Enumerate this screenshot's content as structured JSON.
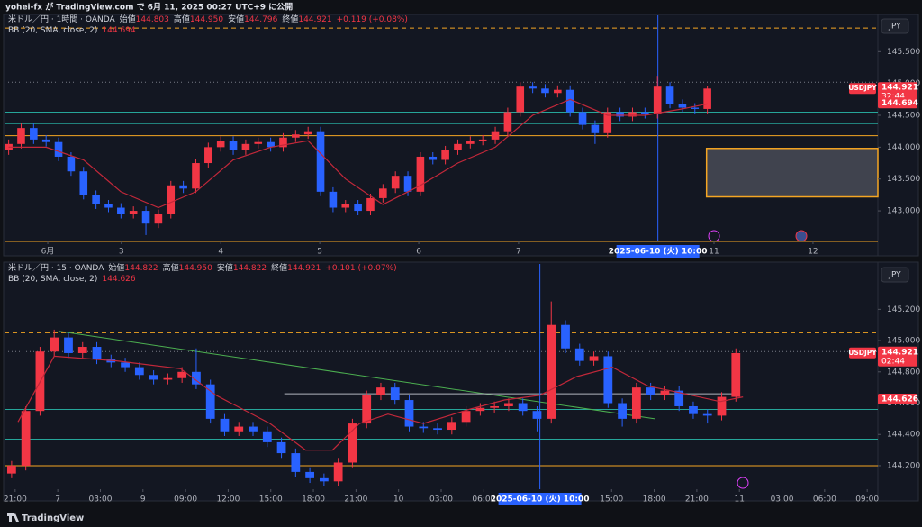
{
  "header": {
    "title": "yohei-fx が TradingView.com で 6月 11, 2025 00:27 UTC+9 に公開"
  },
  "footer": {
    "brand": "TradingView"
  },
  "chart_data": [
    {
      "type": "candlestick",
      "currency": "JPY",
      "symbol_tag": "USDJPY",
      "legend": {
        "symbol": "米ドル／円 · 1時間 · OANDA",
        "items": [
          {
            "label": "始値",
            "value": "144.803"
          },
          {
            "label": "高値",
            "value": "144.950"
          },
          {
            "label": "安値",
            "value": "144.796"
          },
          {
            "label": "終値",
            "value": "144.921"
          }
        ],
        "change": "+0.119 (+0.08%)"
      },
      "indicator": {
        "name": "BB (20, SMA, close, 2)",
        "value": "144.694"
      },
      "up_color": "#f23645",
      "down_color": "#2962ff",
      "grid": false,
      "xlim": [
        0,
        210
      ],
      "ylim": [
        142.52,
        146.07
      ],
      "xticks": [
        {
          "value": 10.4,
          "label": "6月"
        },
        {
          "value": 28.1,
          "label": "3"
        },
        {
          "value": 52,
          "label": "4"
        },
        {
          "value": 75.8,
          "label": "5"
        },
        {
          "value": 99.6,
          "label": "6"
        },
        {
          "value": 123.6,
          "label": "7"
        },
        {
          "value": 170.6,
          "label": "11"
        },
        {
          "value": 194.4,
          "label": "12"
        }
      ],
      "yticks": [
        {
          "value": 145.5,
          "label": "145.500"
        },
        {
          "value": 145,
          "label": "145.000"
        },
        {
          "value": 144.5,
          "label": "144.500"
        },
        {
          "value": 144,
          "label": "144.000"
        },
        {
          "value": 143.5,
          "label": "143.500"
        },
        {
          "value": 143,
          "label": "143.000"
        }
      ],
      "x": [
        1,
        4,
        7,
        10,
        13,
        16,
        19,
        22,
        25,
        28,
        31,
        34,
        37,
        40,
        43,
        46,
        49,
        52,
        55,
        58,
        61,
        64,
        67,
        70,
        73,
        76,
        79,
        82,
        85,
        88,
        91,
        94,
        97,
        100,
        103,
        106,
        109,
        112,
        115,
        118,
        121,
        124,
        127,
        130,
        133,
        136,
        139,
        142,
        145,
        148,
        151,
        154,
        157,
        160,
        163,
        166,
        169
      ],
      "open": [
        143.95,
        144.05,
        144.3,
        144.12,
        144.08,
        143.85,
        143.62,
        143.25,
        143.1,
        143.05,
        142.95,
        143.0,
        142.8,
        142.95,
        143.4,
        143.35,
        143.75,
        144.0,
        144.1,
        143.95,
        144.05,
        144.08,
        144.0,
        144.15,
        144.2,
        144.25,
        143.3,
        143.05,
        143.1,
        143.0,
        143.2,
        143.35,
        143.55,
        143.3,
        143.85,
        143.8,
        143.95,
        144.05,
        144.1,
        144.12,
        144.25,
        144.55,
        144.95,
        144.92,
        144.85,
        144.9,
        144.55,
        144.35,
        144.22,
        144.55,
        144.48,
        144.55,
        144.52,
        144.95,
        144.68,
        144.62,
        144.6
      ],
      "high": [
        144.12,
        144.37,
        144.37,
        144.19,
        144.15,
        143.92,
        143.69,
        143.32,
        143.17,
        143.12,
        143.07,
        143.07,
        143.02,
        143.47,
        143.47,
        143.82,
        144.07,
        144.17,
        144.17,
        144.12,
        144.15,
        144.15,
        144.22,
        144.27,
        144.32,
        144.32,
        143.37,
        143.17,
        143.17,
        143.27,
        143.42,
        143.62,
        143.62,
        143.92,
        143.92,
        144.02,
        144.12,
        144.17,
        144.19,
        144.32,
        144.62,
        145.02,
        145.02,
        144.99,
        144.97,
        144.97,
        144.62,
        144.42,
        144.62,
        144.62,
        144.62,
        144.62,
        145.12,
        145.02,
        144.75,
        144.69,
        144.96
      ],
      "low": [
        143.88,
        143.98,
        144.05,
        144.01,
        143.78,
        143.55,
        143.18,
        143.03,
        142.98,
        142.88,
        142.88,
        142.62,
        142.73,
        142.88,
        143.28,
        143.28,
        143.68,
        143.93,
        143.88,
        143.88,
        143.98,
        143.93,
        143.93,
        144.08,
        144.13,
        143.23,
        142.98,
        142.98,
        142.93,
        142.93,
        143.13,
        143.28,
        143.23,
        143.23,
        143.73,
        143.73,
        143.88,
        143.98,
        144.03,
        144.05,
        144.18,
        144.48,
        144.85,
        144.78,
        144.78,
        144.48,
        144.28,
        144.05,
        144.15,
        144.41,
        144.41,
        144.45,
        144.45,
        144.61,
        144.55,
        144.53,
        144.53
      ],
      "close": [
        144.05,
        144.3,
        144.12,
        144.08,
        143.85,
        143.62,
        143.25,
        143.1,
        143.05,
        142.95,
        143.0,
        142.8,
        142.95,
        143.4,
        143.35,
        143.75,
        144.0,
        144.1,
        143.95,
        144.05,
        144.08,
        144.0,
        144.15,
        144.2,
        144.25,
        143.3,
        143.05,
        143.1,
        143.0,
        143.2,
        143.35,
        143.55,
        143.3,
        143.85,
        143.8,
        143.95,
        144.05,
        144.1,
        144.12,
        144.25,
        144.55,
        144.95,
        144.92,
        144.85,
        144.9,
        144.55,
        144.35,
        144.22,
        144.55,
        144.48,
        144.55,
        144.52,
        144.95,
        144.68,
        144.62,
        144.6,
        144.92
      ],
      "bb": {
        "color": "#c2283a",
        "x": [
          1,
          10,
          19,
          28,
          37,
          46,
          55,
          64,
          73,
          82,
          91,
          100,
          109,
          118,
          127,
          136,
          145,
          154,
          163,
          169
        ],
        "values": [
          144.0,
          144.0,
          143.8,
          143.3,
          143.05,
          143.3,
          143.8,
          144.0,
          144.1,
          143.5,
          143.1,
          143.4,
          143.75,
          144.0,
          144.5,
          144.75,
          144.5,
          144.5,
          144.6,
          144.68
        ]
      },
      "levels": [
        {
          "value": 145.87,
          "color": "#f5a623",
          "style": "dashed"
        },
        {
          "value": 145.02,
          "color": "#787b86",
          "style": "dotted"
        },
        {
          "value": 144.55,
          "color": "#26a69a",
          "style": "solid"
        },
        {
          "value": 144.37,
          "color": "#26a69a",
          "style": "solid"
        },
        {
          "value": 144.18,
          "color": "#f5a623",
          "style": "solid"
        },
        {
          "value": 142.52,
          "color": "#f5a623",
          "style": "solid"
        }
      ],
      "zone": {
        "x": [
          168.8,
          210
        ],
        "y": [
          143.22,
          143.98
        ],
        "color": "#f5a623"
      },
      "cursor": {
        "x": 157.1,
        "label": "2025-06-10 (火)  10:00"
      },
      "last_price": {
        "value": 144.921,
        "label": "144.921"
      },
      "countdown": "32:44",
      "bb_tag": {
        "value": 144.694,
        "label": "144.694"
      }
    },
    {
      "type": "candlestick",
      "currency": "JPY",
      "symbol_tag": "USDJPY",
      "legend": {
        "symbol": "米ドル／円 · 15 · OANDA",
        "items": [
          {
            "label": "始値",
            "value": "144.822"
          },
          {
            "label": "高値",
            "value": "144.950"
          },
          {
            "label": "安値",
            "value": "144.822"
          },
          {
            "label": "終値",
            "value": "144.921"
          }
        ],
        "change": "+0.101 (+0.07%)"
      },
      "indicator": {
        "name": "BB (20, SMA, close, 2)",
        "value": "144.626"
      },
      "up_color": "#f23645",
      "down_color": "#2962ff",
      "grid": false,
      "xlim": [
        0,
        61.5
      ],
      "ylim": [
        144.05,
        145.49
      ],
      "xticks": [
        {
          "value": 0.75,
          "label": "21:00"
        },
        {
          "value": 3.75,
          "label": "7"
        },
        {
          "value": 6.75,
          "label": "03:00"
        },
        {
          "value": 9.75,
          "label": "9"
        },
        {
          "value": 12.75,
          "label": "09:00"
        },
        {
          "value": 15.75,
          "label": "12:00"
        },
        {
          "value": 18.75,
          "label": "15:00"
        },
        {
          "value": 21.75,
          "label": "18:00"
        },
        {
          "value": 24.75,
          "label": "21:00"
        },
        {
          "value": 27.75,
          "label": "10"
        },
        {
          "value": 30.75,
          "label": "03:00"
        },
        {
          "value": 33.75,
          "label": "06:00"
        },
        {
          "value": 42.75,
          "label": "15:00"
        },
        {
          "value": 45.75,
          "label": "18:00"
        },
        {
          "value": 48.75,
          "label": "21:00"
        },
        {
          "value": 51.75,
          "label": "11"
        },
        {
          "value": 54.75,
          "label": "03:00"
        },
        {
          "value": 57.75,
          "label": "06:00"
        },
        {
          "value": 60.75,
          "label": "09:00"
        }
      ],
      "yticks": [
        {
          "value": 145.2,
          "label": "145.200"
        },
        {
          "value": 145,
          "label": "145.000"
        },
        {
          "value": 144.8,
          "label": "144.800"
        },
        {
          "value": 144.6,
          "label": "144.600"
        },
        {
          "value": 144.4,
          "label": "144.400"
        },
        {
          "value": 144.2,
          "label": "144.200"
        }
      ],
      "x": [
        0.5,
        1.5,
        2.5,
        3.5,
        4.5,
        5.5,
        6.5,
        7.5,
        8.5,
        9.5,
        10.5,
        11.5,
        12.5,
        13.5,
        14.5,
        15.5,
        16.5,
        17.5,
        18.5,
        19.5,
        20.5,
        21.5,
        22.5,
        23.5,
        24.5,
        25.5,
        26.5,
        27.5,
        28.5,
        29.5,
        30.5,
        31.5,
        32.5,
        33.5,
        34.5,
        35.5,
        36.5,
        37.5,
        38.5,
        39.5,
        40.5,
        41.5,
        42.5,
        43.5,
        44.5,
        45.5,
        46.5,
        47.5,
        48.5,
        49.5,
        50.5,
        51.5
      ],
      "open": [
        144.15,
        144.2,
        144.55,
        144.93,
        145.02,
        144.92,
        144.96,
        144.88,
        144.86,
        144.83,
        144.78,
        144.75,
        144.76,
        144.8,
        144.72,
        144.5,
        144.42,
        144.45,
        144.42,
        144.35,
        144.28,
        144.16,
        144.12,
        144.1,
        144.22,
        144.47,
        144.65,
        144.7,
        144.62,
        144.45,
        144.44,
        144.43,
        144.48,
        144.55,
        144.57,
        144.58,
        144.6,
        144.55,
        144.5,
        145.1,
        144.95,
        144.87,
        144.9,
        144.6,
        144.5,
        144.7,
        144.65,
        144.68,
        144.58,
        144.53,
        144.52,
        144.64
      ],
      "high": [
        144.23,
        144.58,
        144.96,
        145.07,
        145.05,
        144.99,
        144.99,
        144.91,
        144.89,
        144.86,
        144.81,
        144.79,
        144.83,
        144.95,
        144.75,
        144.53,
        144.48,
        144.48,
        144.45,
        144.38,
        144.31,
        144.19,
        144.15,
        144.25,
        144.5,
        144.68,
        144.73,
        144.73,
        144.65,
        144.48,
        144.47,
        144.51,
        144.58,
        144.6,
        144.61,
        144.63,
        144.63,
        144.58,
        145.25,
        145.13,
        144.98,
        144.93,
        144.93,
        144.63,
        144.73,
        144.73,
        144.71,
        144.71,
        144.61,
        144.56,
        144.67,
        144.95
      ],
      "low": [
        144.12,
        144.17,
        144.52,
        144.9,
        144.89,
        144.89,
        144.85,
        144.83,
        144.8,
        144.75,
        144.72,
        144.72,
        144.73,
        144.69,
        144.47,
        144.39,
        144.39,
        144.39,
        144.32,
        144.25,
        144.13,
        144.09,
        144.07,
        144.07,
        144.19,
        144.44,
        144.62,
        144.59,
        144.42,
        144.41,
        144.4,
        144.4,
        144.45,
        144.52,
        144.54,
        144.55,
        144.52,
        144.42,
        144.47,
        144.92,
        144.84,
        144.84,
        144.57,
        144.45,
        144.47,
        144.62,
        144.62,
        144.55,
        144.5,
        144.47,
        144.49,
        144.61
      ],
      "close": [
        144.2,
        144.55,
        144.93,
        145.02,
        144.92,
        144.96,
        144.88,
        144.86,
        144.83,
        144.78,
        144.75,
        144.76,
        144.8,
        144.72,
        144.5,
        144.42,
        144.45,
        144.42,
        144.35,
        144.28,
        144.16,
        144.12,
        144.1,
        144.22,
        144.47,
        144.65,
        144.7,
        144.62,
        144.45,
        144.44,
        144.43,
        144.48,
        144.55,
        144.57,
        144.58,
        144.6,
        144.55,
        144.5,
        145.1,
        144.95,
        144.87,
        144.9,
        144.6,
        144.5,
        144.7,
        144.65,
        144.68,
        144.58,
        144.53,
        144.52,
        144.64,
        144.92
      ],
      "bb": {
        "color": "#c2283a",
        "x": [
          0.95,
          3.5,
          7.9,
          12.4,
          14.9,
          18.7,
          21.2,
          23.1,
          25.0,
          27.0,
          29.5,
          32.7,
          35.2,
          37.7,
          40.3,
          42.8,
          45.3,
          47.9,
          50.4,
          52.0
        ],
        "values": [
          144.48,
          144.9,
          144.87,
          144.82,
          144.65,
          144.47,
          144.3,
          144.3,
          144.47,
          144.53,
          144.47,
          144.56,
          144.62,
          144.65,
          144.77,
          144.83,
          144.71,
          144.66,
          144.61,
          144.64
        ]
      },
      "levels": [
        {
          "value": 145.05,
          "color": "#f5a623",
          "style": "dashed"
        },
        {
          "value": 144.93,
          "color": "#787b86",
          "style": "dotted"
        },
        {
          "value": 144.56,
          "color": "#26a69a",
          "style": "solid"
        },
        {
          "value": 144.37,
          "color": "#26a69a",
          "style": "solid"
        },
        {
          "value": 144.2,
          "color": "#f5a623",
          "style": "solid"
        }
      ],
      "segments": [
        {
          "x": [
            3.8,
            45.8
          ],
          "y": [
            145.06,
            144.5
          ],
          "color": "#4caf50"
        },
        {
          "x": [
            19.7,
            51.7
          ],
          "y": [
            144.66,
            144.66
          ],
          "color": "#b2b5be"
        }
      ],
      "cursor": {
        "x": 37.7,
        "label": "2025-06-10 (火)  10:00"
      },
      "last_price": {
        "value": 144.921,
        "label": "144.921"
      },
      "countdown": "02:44",
      "bb_tag": {
        "value": 144.626,
        "label": "144.626"
      }
    }
  ]
}
